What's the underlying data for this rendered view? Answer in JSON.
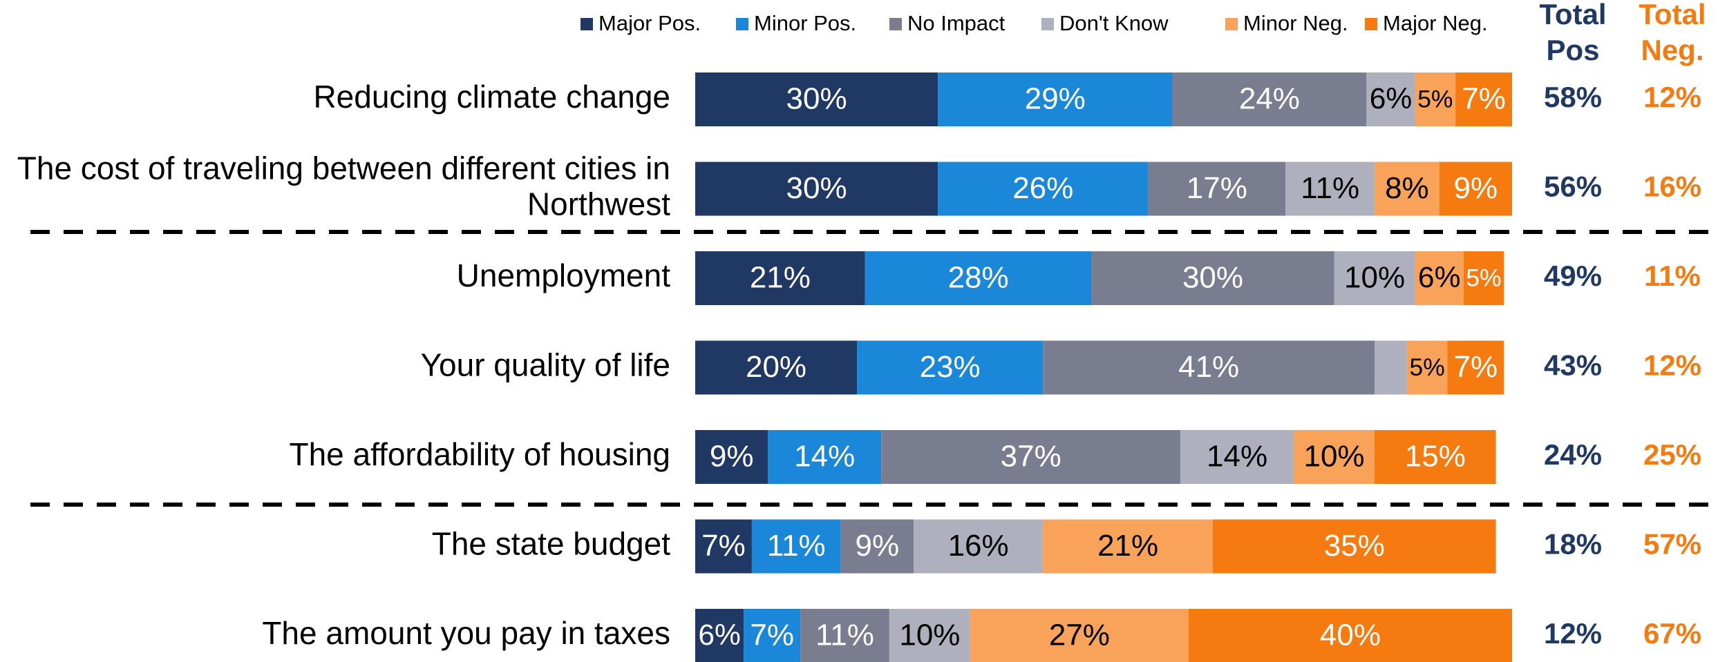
{
  "chart_data": {
    "type": "stacked_bar_horizontal",
    "categories": [
      "Reducing climate change",
      "The cost of traveling between different cities in Northwest",
      "Unemployment",
      "Your quality of life",
      "The affordability of housing",
      "The state budget",
      "The amount you pay in taxes"
    ],
    "series": [
      {
        "name": "Major Pos.",
        "color": "#1f3864",
        "label_color": "#ffffff",
        "values": [
          30,
          30,
          21,
          20,
          9,
          7,
          6
        ],
        "value_labels": [
          "30%",
          "30%",
          "21%",
          "20%",
          "9%",
          "7%",
          "6%"
        ]
      },
      {
        "name": "Minor Pos.",
        "color": "#1a87d9",
        "label_color": "#ffffff",
        "values": [
          29,
          26,
          28,
          23,
          14,
          11,
          7
        ],
        "value_labels": [
          "29%",
          "26%",
          "28%",
          "23%",
          "14%",
          "11%",
          "7%"
        ]
      },
      {
        "name": "No Impact",
        "color": "#7a7d90",
        "label_color": "#ffffff",
        "values": [
          24,
          17,
          30,
          41,
          37,
          9,
          11
        ],
        "value_labels": [
          "24%",
          "17%",
          "30%",
          "41%",
          "37%",
          "9%",
          "11%"
        ]
      },
      {
        "name": "Don't Know",
        "color": "#aeb0bd",
        "label_color": "#000000",
        "values": [
          6,
          11,
          10,
          4,
          14,
          16,
          10
        ],
        "value_labels": [
          "6%",
          "11%",
          "10%",
          null,
          "14%",
          "16%",
          "10%"
        ]
      },
      {
        "name": "Minor Neg.",
        "color": "#f9a25a",
        "label_color": "#000000",
        "values": [
          5,
          8,
          6,
          5,
          10,
          21,
          27
        ],
        "value_labels": [
          "5%",
          "8%",
          "6%",
          "5%",
          "10%",
          "21%",
          "27%"
        ]
      },
      {
        "name": "Major Neg.",
        "color": "#f57a10",
        "label_color": "#ffffff",
        "values": [
          7,
          9,
          5,
          7,
          15,
          35,
          40
        ],
        "value_labels": [
          "7%",
          "9%",
          "5%",
          "7%",
          "15%",
          "35%",
          "40%"
        ]
      }
    ],
    "totals": [
      {
        "title": "Total Pos",
        "color": "#1f3864",
        "values": [
          58,
          56,
          49,
          43,
          24,
          18,
          12
        ],
        "value_labels": [
          "58%",
          "56%",
          "49%",
          "43%",
          "24%",
          "18%",
          "12%"
        ]
      },
      {
        "title": "Total Neg.",
        "color": "#f57a10",
        "values": [
          12,
          16,
          11,
          12,
          25,
          57,
          67
        ],
        "value_labels": [
          "12%",
          "16%",
          "11%",
          "12%",
          "25%",
          "57%",
          "67%"
        ]
      }
    ]
  }
}
